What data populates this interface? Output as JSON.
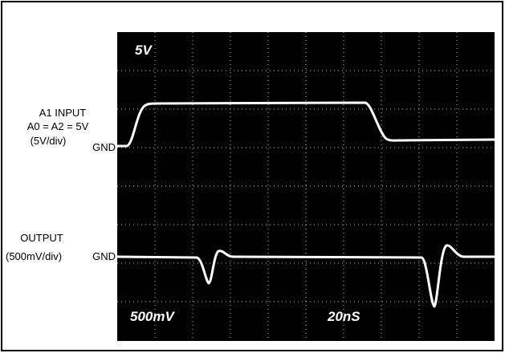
{
  "screen": {
    "ch1_scale": "5V",
    "ch2_scale": "500mV",
    "timebase": "20nS"
  },
  "channel1": {
    "lines": [
      "A1 INPUT",
      "A0 = A2 = 5V",
      "(5V/div)"
    ],
    "ground": "GND"
  },
  "channel2": {
    "lines": [
      "OUTPUT",
      "(500mV/div)"
    ],
    "ground": "GND"
  }
}
